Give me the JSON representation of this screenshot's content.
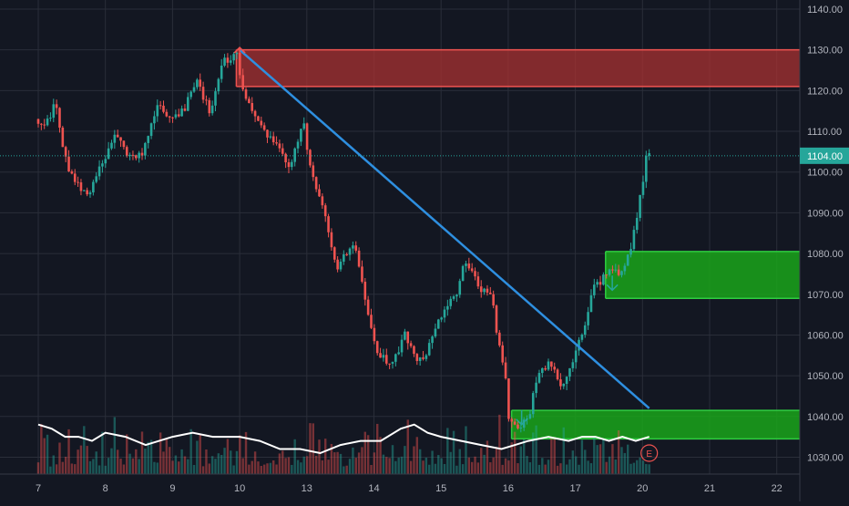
{
  "theme": {
    "background": "#131722",
    "grid": "#2a2e39",
    "axis_text": "#b2b5be",
    "up": "#26a69a",
    "down": "#ef5350",
    "trendline": "#2e8fe0",
    "resistance_zone": "#a83232",
    "support_zone": "#1aa51a",
    "volume_ma": "#ffffff",
    "last_price_bg": "#26a69a"
  },
  "chart_data": {
    "type": "candlestick",
    "title": "",
    "xlabel": "",
    "ylabel": "",
    "x_ticks": [
      "7",
      "8",
      "9",
      "10",
      "13",
      "14",
      "15",
      "16",
      "17",
      "20",
      "21",
      "22"
    ],
    "y_ticks": [
      "1030.00",
      "1040.00",
      "1050.00",
      "1060.00",
      "1070.00",
      "1080.00",
      "1090.00",
      "1100.00",
      "1110.00",
      "1120.00",
      "1130.00",
      "1140.00"
    ],
    "y_range": [
      1026,
      1143
    ],
    "grid": true,
    "last_price": 1104,
    "last_price_label": "1104.00",
    "price_path": [
      [
        0,
        1113
      ],
      [
        0.15,
        1111
      ],
      [
        0.3,
        1117
      ],
      [
        0.45,
        1103
      ],
      [
        0.6,
        1097
      ],
      [
        0.8,
        1095
      ],
      [
        1.0,
        1102
      ],
      [
        1.2,
        1109
      ],
      [
        1.4,
        1104
      ],
      [
        1.6,
        1104
      ],
      [
        1.8,
        1116
      ],
      [
        2.0,
        1114
      ],
      [
        2.2,
        1115
      ],
      [
        2.4,
        1122
      ],
      [
        2.6,
        1115
      ],
      [
        2.8,
        1127
      ],
      [
        3.0,
        1129
      ],
      [
        3.1,
        1120
      ],
      [
        3.2,
        1116
      ],
      [
        3.4,
        1110
      ],
      [
        3.6,
        1106
      ],
      [
        3.8,
        1101
      ],
      [
        4.0,
        1112
      ],
      [
        4.1,
        1100
      ],
      [
        4.3,
        1090
      ],
      [
        4.5,
        1076
      ],
      [
        4.7,
        1082
      ],
      [
        4.8,
        1079
      ],
      [
        5.0,
        1062
      ],
      [
        5.1,
        1056
      ],
      [
        5.3,
        1052
      ],
      [
        5.5,
        1060
      ],
      [
        5.7,
        1053
      ],
      [
        5.9,
        1058
      ],
      [
        6.1,
        1067
      ],
      [
        6.3,
        1071
      ],
      [
        6.4,
        1078
      ],
      [
        6.6,
        1072
      ],
      [
        6.8,
        1070
      ],
      [
        6.9,
        1058
      ],
      [
        7.0,
        1052
      ],
      [
        7.05,
        1040
      ],
      [
        7.2,
        1037
      ],
      [
        7.35,
        1040
      ],
      [
        7.5,
        1051
      ],
      [
        7.7,
        1053
      ],
      [
        7.85,
        1046
      ],
      [
        8.0,
        1053
      ],
      [
        8.1,
        1058
      ],
      [
        8.2,
        1063
      ],
      [
        8.3,
        1071
      ],
      [
        8.45,
        1074
      ],
      [
        8.6,
        1077
      ],
      [
        8.75,
        1075
      ],
      [
        8.85,
        1080
      ],
      [
        8.95,
        1088
      ],
      [
        9.05,
        1097
      ],
      [
        9.1,
        1104
      ]
    ],
    "volume_ma_path": [
      [
        0,
        1038
      ],
      [
        0.2,
        1037
      ],
      [
        0.4,
        1035
      ],
      [
        0.6,
        1035
      ],
      [
        0.8,
        1034
      ],
      [
        1.0,
        1036
      ],
      [
        1.3,
        1035
      ],
      [
        1.6,
        1033
      ],
      [
        2.0,
        1035
      ],
      [
        2.3,
        1036
      ],
      [
        2.6,
        1035
      ],
      [
        3.0,
        1035
      ],
      [
        3.3,
        1034
      ],
      [
        3.6,
        1032
      ],
      [
        3.9,
        1032
      ],
      [
        4.2,
        1031
      ],
      [
        4.5,
        1033
      ],
      [
        4.8,
        1034
      ],
      [
        5.1,
        1034
      ],
      [
        5.4,
        1037
      ],
      [
        5.6,
        1038
      ],
      [
        5.8,
        1036
      ],
      [
        6.0,
        1035
      ],
      [
        6.3,
        1034
      ],
      [
        6.6,
        1033
      ],
      [
        6.9,
        1032
      ],
      [
        7.1,
        1033
      ],
      [
        7.3,
        1034
      ],
      [
        7.6,
        1035
      ],
      [
        7.9,
        1034
      ],
      [
        8.1,
        1035
      ],
      [
        8.3,
        1035
      ],
      [
        8.5,
        1034
      ],
      [
        8.7,
        1035
      ],
      [
        8.9,
        1034
      ],
      [
        9.1,
        1035
      ]
    ],
    "trendline": {
      "from": [
        3.0,
        1130
      ],
      "to": [
        9.1,
        1042
      ]
    },
    "zones": [
      {
        "name": "resistance",
        "x0": 2.95,
        "y_low": 1121,
        "y_high": 1130,
        "extends_right": true
      },
      {
        "name": "support-upper",
        "x0": 8.45,
        "y_low": 1069,
        "y_high": 1080.5,
        "extends_right": true
      },
      {
        "name": "support-lower",
        "x0": 7.05,
        "y_low": 1034.5,
        "y_high": 1041.5,
        "extends_right": true
      }
    ],
    "markers": [
      {
        "type": "arrow-up",
        "x": 3.0,
        "y": 1127,
        "color": "#ef5350"
      },
      {
        "type": "arrow-down",
        "x": 7.2,
        "y": 1038,
        "color": "#26a69a"
      },
      {
        "type": "arrow-down",
        "x": 8.55,
        "y": 1071,
        "color": "#26a69a"
      }
    ],
    "earnings_marker": {
      "label": "E",
      "x": 9.1
    }
  }
}
